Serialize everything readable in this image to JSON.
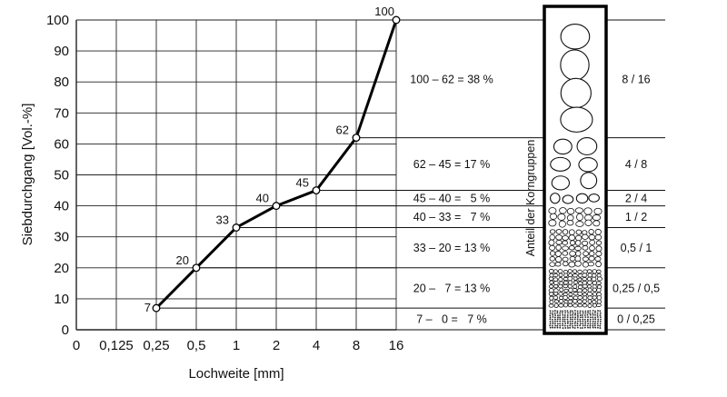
{
  "chart_data": {
    "type": "line",
    "xlabel": "Lochweite  [mm]",
    "ylabel": "Siebdurchgang  [Vol.-%]",
    "ylim": [
      0,
      100
    ],
    "y_ticks": [
      "0",
      "10",
      "20",
      "30",
      "40",
      "50",
      "60",
      "70",
      "80",
      "90",
      "100"
    ],
    "x_ticks": [
      "0",
      "0,125",
      "0,25",
      "0,5",
      "1",
      "2",
      "4",
      "8",
      "16"
    ],
    "series": [
      {
        "x": [
          "0,25",
          "0,5",
          "1",
          "2",
          "4",
          "8",
          "16"
        ],
        "values": [
          7,
          20,
          33,
          40,
          45,
          62,
          100
        ],
        "labels": [
          "7",
          "20",
          "33",
          "40",
          "45",
          "62",
          "100"
        ]
      }
    ],
    "grid": true,
    "side_title": "Anteil der Korngruppen",
    "shares": [
      {
        "text": "100 – 62 = 38 %",
        "from": 62,
        "to": 100,
        "group": "8 / 16"
      },
      {
        "text": "62 – 45 = 17 %",
        "from": 45,
        "to": 62,
        "group": "4 / 8"
      },
      {
        "text": "45 – 40 =   5 %",
        "from": 40,
        "to": 45,
        "group": "2 / 4"
      },
      {
        "text": "40 – 33 =   7 %",
        "from": 33,
        "to": 40,
        "group": "1 / 2"
      },
      {
        "text": "33 – 20 = 13 %",
        "from": 20,
        "to": 33,
        "group": "0,5 / 1"
      },
      {
        "text": "20 –   7 = 13 %",
        "from": 7,
        "to": 20,
        "group": "0,25 / 0,5"
      },
      {
        "text": "7 –   0 =   7 %",
        "from": 0,
        "to": 7,
        "group": "0 / 0,25"
      }
    ]
  }
}
